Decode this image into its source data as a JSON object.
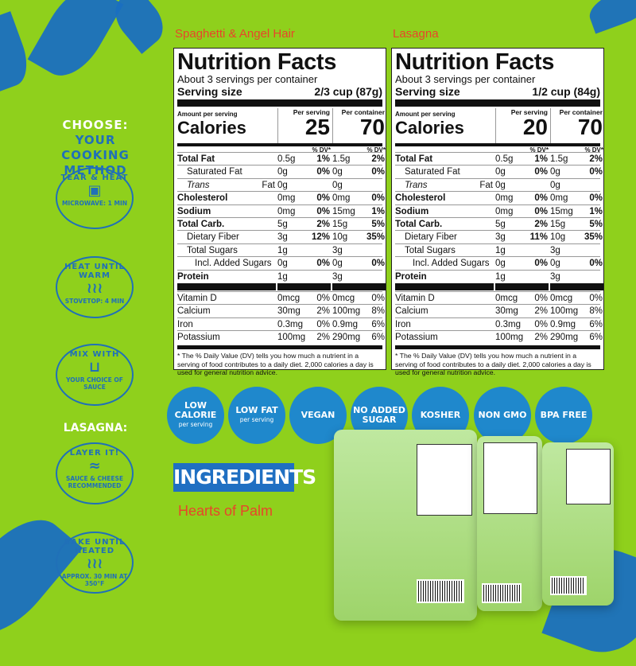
{
  "cooking": {
    "heading1": "CHOOSE:",
    "heading2": "YOUR COOKING",
    "heading3": "METHOD",
    "methods": [
      {
        "top": "TEAR & HEAT",
        "icon": "microwave-icon",
        "bottom": "MICROWAVE: 1 MIN"
      },
      {
        "top": "HEAT UNTIL WARM",
        "icon": "steam-icon",
        "bottom": "STOVETOP: 4 MIN"
      },
      {
        "top": "MIX WITH",
        "icon": "pot-icon",
        "bottom": "YOUR CHOICE OF SAUCE"
      }
    ],
    "lasagna_heading": "LASAGNA:",
    "lasagna_methods": [
      {
        "top": "LAYER IT!",
        "icon": "layers-icon",
        "bottom": "SAUCE & CHEESE RECOMMENDED"
      },
      {
        "top": "BAKE UNTIL HEATED",
        "icon": "steam-icon",
        "bottom": "APPROX. 30 MIN AT 350°F"
      }
    ]
  },
  "labels": [
    {
      "title": "Spaghetti & Angel Hair",
      "heading": "Nutrition Facts",
      "servings": "About 3 servings per container",
      "serving_label": "Serving size",
      "serving_size": "2/3 cup (87g)",
      "amount": "Amount per serving",
      "calories_label": "Calories",
      "per_serving": "Per serving",
      "per_container": "Per container",
      "cal_serving": "25",
      "cal_container": "70",
      "dv": "% DV*",
      "rows": [
        [
          "Total Fat",
          "0.5g",
          "1%",
          "1.5g",
          "2%"
        ],
        [
          "Saturated Fat",
          "0g",
          "0%",
          "0g",
          "0%"
        ],
        [
          "Trans Fat",
          "0g",
          "",
          "0g",
          ""
        ],
        [
          "Cholesterol",
          "0mg",
          "0%",
          "0mg",
          "0%"
        ],
        [
          "Sodium",
          "0mg",
          "0%",
          "15mg",
          "1%"
        ],
        [
          "Total Carb.",
          "5g",
          "2%",
          "15g",
          "5%"
        ],
        [
          "Dietary Fiber",
          "3g",
          "12%",
          "10g",
          "35%"
        ],
        [
          "Total Sugars",
          "1g",
          "",
          "3g",
          ""
        ],
        [
          "Incl. Added Sugars",
          "0g",
          "0%",
          "0g",
          "0%"
        ],
        [
          "Protein",
          "1g",
          "",
          "3g",
          ""
        ]
      ],
      "micros": [
        [
          "Vitamin D",
          "0mcg",
          "0%",
          "0mcg",
          "0%"
        ],
        [
          "Calcium",
          "30mg",
          "2%",
          "100mg",
          "8%"
        ],
        [
          "Iron",
          "0.3mg",
          "0%",
          "0.9mg",
          "6%"
        ],
        [
          "Potassium",
          "100mg",
          "2%",
          "290mg",
          "6%"
        ]
      ],
      "footnote": "* The % Daily Value (DV) tells you how much a nutrient in a serving of food contributes to a daily diet. 2,000 calories a day is used for general nutrition advice."
    },
    {
      "title": "Lasagna",
      "heading": "Nutrition Facts",
      "servings": "About 3 servings per container",
      "serving_label": "Serving size",
      "serving_size": "1/2 cup (84g)",
      "amount": "Amount per serving",
      "calories_label": "Calories",
      "per_serving": "Per serving",
      "per_container": "Per container",
      "cal_serving": "20",
      "cal_container": "70",
      "dv": "% DV*",
      "rows": [
        [
          "Total Fat",
          "0.5g",
          "1%",
          "1.5g",
          "2%"
        ],
        [
          "Saturated Fat",
          "0g",
          "0%",
          "0g",
          "0%"
        ],
        [
          "Trans Fat",
          "0g",
          "",
          "0g",
          ""
        ],
        [
          "Cholesterol",
          "0mg",
          "0%",
          "0mg",
          "0%"
        ],
        [
          "Sodium",
          "0mg",
          "0%",
          "15mg",
          "1%"
        ],
        [
          "Total Carb.",
          "5g",
          "2%",
          "15g",
          "5%"
        ],
        [
          "Dietary Fiber",
          "3g",
          "11%",
          "10g",
          "35%"
        ],
        [
          "Total Sugars",
          "1g",
          "",
          "3g",
          ""
        ],
        [
          "Incl. Added Sugars",
          "0g",
          "0%",
          "0g",
          "0%"
        ],
        [
          "Protein",
          "1g",
          "",
          "3g",
          ""
        ]
      ],
      "micros": [
        [
          "Vitamin D",
          "0mcg",
          "0%",
          "0mcg",
          "0%"
        ],
        [
          "Calcium",
          "30mg",
          "2%",
          "100mg",
          "8%"
        ],
        [
          "Iron",
          "0.3mg",
          "0%",
          "0.9mg",
          "6%"
        ],
        [
          "Potassium",
          "100mg",
          "2%",
          "290mg",
          "6%"
        ]
      ],
      "footnote": "* The % Daily Value (DV) tells you how much a nutrient in a serving of food contributes to a daily diet. 2,000 calories a day is used for general nutrition advice."
    }
  ],
  "badges": [
    {
      "main": "LOW CALORIE",
      "sub": "per serving"
    },
    {
      "main": "LOW FAT",
      "sub": "per serving"
    },
    {
      "main": "VEGAN",
      "sub": ""
    },
    {
      "main": "NO ADDED SUGAR",
      "sub": ""
    },
    {
      "main": "KOSHER",
      "sub": ""
    },
    {
      "main": "NON GMO",
      "sub": ""
    },
    {
      "main": "BPA FREE",
      "sub": ""
    }
  ],
  "ingredients": {
    "heading": "INGREDIENTS",
    "value": "Hearts of Palm"
  },
  "colors": {
    "background": "#8fd01c",
    "brand_blue": "#1f6fc2",
    "accent": "#e8452a"
  }
}
